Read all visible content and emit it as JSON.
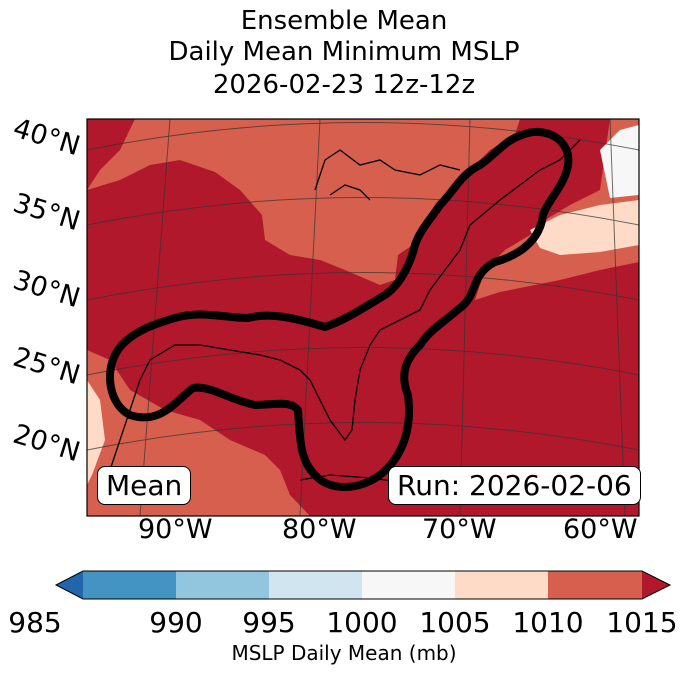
{
  "title": {
    "line1": "Ensemble Mean",
    "line2": "Daily Mean Minimum MSLP",
    "line3": "2026-02-23 12z-12z"
  },
  "map": {
    "lat_labels": [
      "40°N",
      "35°N",
      "30°N",
      "25°N",
      "20°N"
    ],
    "lon_labels": [
      "90°W",
      "80°W",
      "70°W",
      "60°W"
    ],
    "mean_label": "Mean",
    "run_label": "Run: 2026-02-06",
    "colors": {
      "c1010_1015": "#b2182b",
      "c1005_1010": "#d6604d",
      "c1000_1005": "#fddbc7",
      "c995_1000": "#f7f7f7",
      "outline": "#000000"
    }
  },
  "colorbar": {
    "ticks": [
      "985",
      "990",
      "995",
      "1000",
      "1005",
      "1010",
      "1015"
    ],
    "colors": [
      "#2166ac",
      "#4393c3",
      "#92c5de",
      "#d1e5f0",
      "#f7f7f7",
      "#fddbc7",
      "#d6604d",
      "#b2182b"
    ],
    "label": "MSLP Daily Mean (mb)"
  }
}
